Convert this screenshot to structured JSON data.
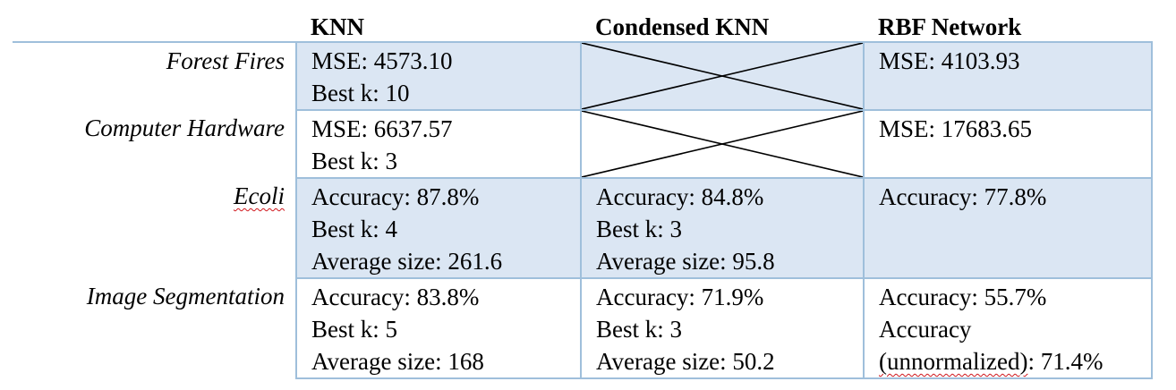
{
  "table": {
    "columns": [
      "",
      "KNN",
      "Condensed KNN",
      "RBF Network"
    ],
    "rows": [
      {
        "label": "Forest Fires",
        "knn": [
          "MSE: 4573.10",
          "Best k: 10"
        ],
        "condensed_knn": null,
        "rbf": [
          "MSE: 4103.93"
        ]
      },
      {
        "label": "Computer Hardware",
        "knn": [
          "MSE: 6637.57",
          "Best k: 3"
        ],
        "condensed_knn": null,
        "rbf": [
          "MSE: 17683.65"
        ]
      },
      {
        "label": "Ecoli",
        "knn": [
          "Accuracy: 87.8%",
          "Best k: 4",
          "Average size: 261.6"
        ],
        "condensed_knn": [
          "Accuracy: 84.8%",
          "Best k: 3",
          "Average size: 95.8"
        ],
        "rbf": [
          "Accuracy: 77.8%"
        ]
      },
      {
        "label": "Image Segmentation",
        "knn": [
          "Accuracy: 83.8%",
          "Best k: 5",
          "Average size: 168"
        ],
        "condensed_knn": [
          "Accuracy: 71.9%",
          "Best k: 3",
          "Average size: 50.2"
        ],
        "rbf": [
          "Accuracy: 55.7%",
          "Accuracy",
          "(unnormalized): 71.4%"
        ],
        "rbf_line3_parts": [
          "(unnormalized)",
          ": 71.4%"
        ]
      }
    ]
  },
  "colors": {
    "shaded_row": "#dbe6f3",
    "border": "#9fbfdb",
    "spellcheck_underline": "#d0161b"
  }
}
